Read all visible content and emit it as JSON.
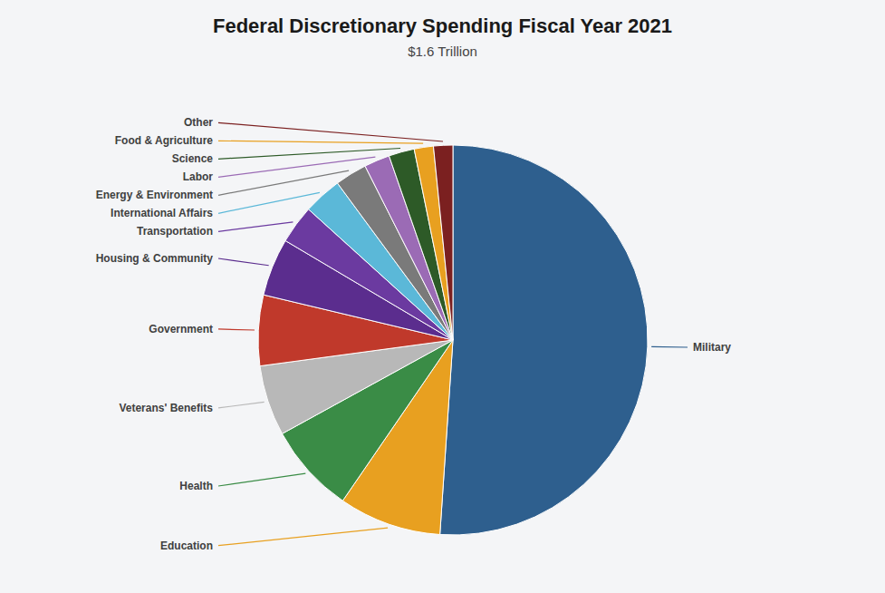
{
  "chart_data": {
    "type": "pie",
    "title": "Federal Discretionary Spending Fiscal Year 2021",
    "subtitle": "$1.6 Trillion",
    "categories": [
      "Military",
      "Education",
      "Health",
      "Veterans' Benefits",
      "Government",
      "Housing & Community",
      "Transportation",
      "International Affairs",
      "Energy & Environment",
      "Labor",
      "Science",
      "Food & Agriculture",
      "Other"
    ],
    "values": [
      48,
      8.0,
      7.0,
      5.5,
      5.5,
      4.5,
      3.0,
      3.0,
      2.5,
      2.0,
      2.0,
      1.5,
      1.5
    ],
    "colors": [
      "#2e5f8e",
      "#e8a020",
      "#3a8c46",
      "#b8b8b8",
      "#c0392b",
      "#5b2d8e",
      "#6b3aa0",
      "#5bb8d8",
      "#7a7a7a",
      "#9b6bb5",
      "#2d5a27",
      "#e8a020",
      "#7b2020"
    ]
  }
}
